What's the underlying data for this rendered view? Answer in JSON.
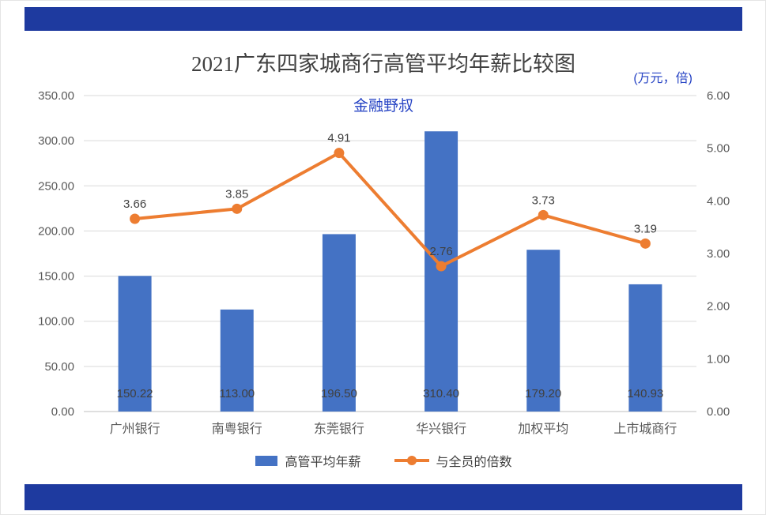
{
  "colors": {
    "banner": "#1E3A9F",
    "accent_text": "#2643C4",
    "grid": "#D9D9D9",
    "baseline": "#BFBFBF",
    "axis_text": "#595959",
    "label_text": "#404040",
    "bar": "#4472C4",
    "line": "#ED7D31"
  },
  "chart_data": {
    "type": "combo-bar-line",
    "title": "2021广东四家城商行高管平均年薪比较图",
    "subtitle": "金融野叔",
    "unit_label": "(万元，倍)",
    "categories": [
      "广州银行",
      "南粤银行",
      "东莞银行",
      "华兴银行",
      "加权平均",
      "上市城商行"
    ],
    "series": [
      {
        "name": "高管平均年薪",
        "type": "bar",
        "axis": "left",
        "color": "#4472C4",
        "values": [
          150.22,
          113.0,
          196.5,
          310.4,
          179.2,
          140.93
        ],
        "labels": [
          "150.22",
          "113.00",
          "196.50",
          "310.40",
          "179.20",
          "140.93"
        ]
      },
      {
        "name": "与全员的倍数",
        "type": "line",
        "axis": "right",
        "color": "#ED7D31",
        "values": [
          3.66,
          3.85,
          4.91,
          2.76,
          3.73,
          3.19
        ],
        "labels": [
          "3.66",
          "3.85",
          "4.91",
          "2.76",
          "3.73",
          "3.19"
        ]
      }
    ],
    "left_axis": {
      "min": 0,
      "max": 350,
      "step": 50,
      "ticks": [
        "350.00",
        "300.00",
        "250.00",
        "200.00",
        "150.00",
        "100.00",
        "50.00",
        "0.00"
      ]
    },
    "right_axis": {
      "min": 0,
      "max": 6,
      "step": 1,
      "ticks": [
        "6.00",
        "5.00",
        "4.00",
        "3.00",
        "2.00",
        "1.00",
        "0.00"
      ]
    },
    "legend": [
      {
        "label": "高管平均年薪",
        "swatch": "bar"
      },
      {
        "label": "与全员的倍数",
        "swatch": "line"
      }
    ],
    "grid": true,
    "legend_position": "bottom"
  }
}
